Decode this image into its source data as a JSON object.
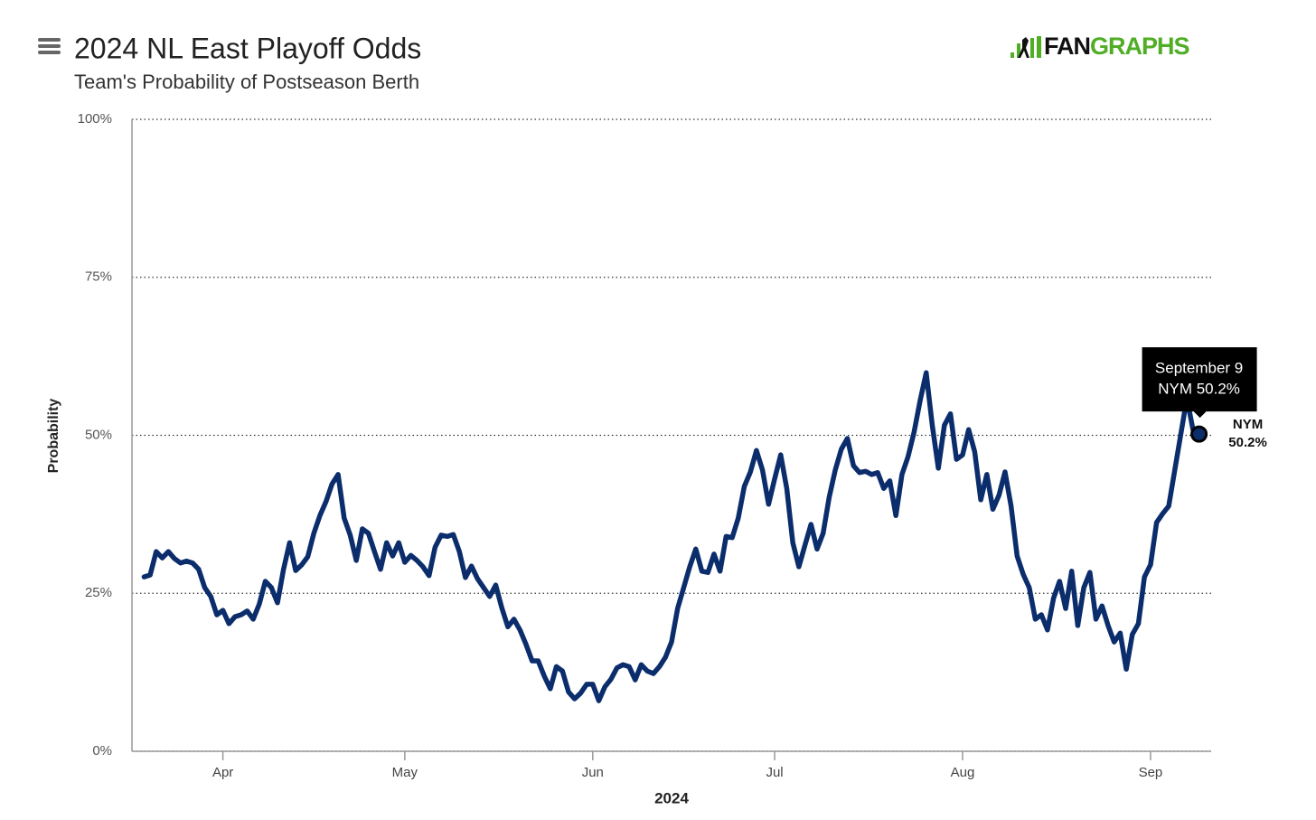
{
  "chart_data": {
    "type": "line",
    "title": "2024 NL East Playoff Odds",
    "subtitle": "Team's Probability of Postseason Berth",
    "logo": {
      "dark": "FAN",
      "green": "GRAPHS"
    },
    "xlabel": "2024",
    "ylabel": "Probability",
    "x": [
      "2024-03-19",
      "2024-03-20",
      "2024-03-21",
      "2024-03-22",
      "2024-03-23",
      "2024-03-24",
      "2024-03-25",
      "2024-03-26",
      "2024-03-27",
      "2024-03-28",
      "2024-03-29",
      "2024-03-30",
      "2024-03-31",
      "2024-04-01",
      "2024-04-02",
      "2024-04-03",
      "2024-04-04",
      "2024-04-05",
      "2024-04-06",
      "2024-04-07",
      "2024-04-08",
      "2024-04-09",
      "2024-04-10",
      "2024-04-11",
      "2024-04-12",
      "2024-04-13",
      "2024-04-14",
      "2024-04-15",
      "2024-04-16",
      "2024-04-17",
      "2024-04-18",
      "2024-04-19",
      "2024-04-20",
      "2024-04-21",
      "2024-04-22",
      "2024-04-23",
      "2024-04-24",
      "2024-04-25",
      "2024-04-26",
      "2024-04-27",
      "2024-04-28",
      "2024-04-29",
      "2024-04-30",
      "2024-05-01",
      "2024-05-02",
      "2024-05-03",
      "2024-05-04",
      "2024-05-05",
      "2024-05-06",
      "2024-05-07",
      "2024-05-08",
      "2024-05-09",
      "2024-05-10",
      "2024-05-11",
      "2024-05-12",
      "2024-05-13",
      "2024-05-14",
      "2024-05-15",
      "2024-05-16",
      "2024-05-17",
      "2024-05-18",
      "2024-05-19",
      "2024-05-20",
      "2024-05-21",
      "2024-05-22",
      "2024-05-23",
      "2024-05-24",
      "2024-05-25",
      "2024-05-26",
      "2024-05-27",
      "2024-05-28",
      "2024-05-29",
      "2024-05-30",
      "2024-05-31",
      "2024-06-01",
      "2024-06-02",
      "2024-06-03",
      "2024-06-04",
      "2024-06-05",
      "2024-06-06",
      "2024-06-07",
      "2024-06-08",
      "2024-06-09",
      "2024-06-10",
      "2024-06-11",
      "2024-06-12",
      "2024-06-13",
      "2024-06-14",
      "2024-06-15",
      "2024-06-16",
      "2024-06-17",
      "2024-06-18",
      "2024-06-19",
      "2024-06-20",
      "2024-06-21",
      "2024-06-22",
      "2024-06-23",
      "2024-06-24",
      "2024-06-25",
      "2024-06-26",
      "2024-06-27",
      "2024-06-28",
      "2024-06-29",
      "2024-06-30",
      "2024-07-01",
      "2024-07-02",
      "2024-07-03",
      "2024-07-04",
      "2024-07-05",
      "2024-07-06",
      "2024-07-07",
      "2024-07-08",
      "2024-07-09",
      "2024-07-10",
      "2024-07-11",
      "2024-07-12",
      "2024-07-13",
      "2024-07-14",
      "2024-07-15",
      "2024-07-16",
      "2024-07-17",
      "2024-07-18",
      "2024-07-19",
      "2024-07-20",
      "2024-07-21",
      "2024-07-22",
      "2024-07-23",
      "2024-07-24",
      "2024-07-25",
      "2024-07-26",
      "2024-07-27",
      "2024-07-28",
      "2024-07-29",
      "2024-07-30",
      "2024-07-31",
      "2024-08-01",
      "2024-08-02",
      "2024-08-03",
      "2024-08-04",
      "2024-08-05",
      "2024-08-06",
      "2024-08-07",
      "2024-08-08",
      "2024-08-09",
      "2024-08-10",
      "2024-08-11",
      "2024-08-12",
      "2024-08-13",
      "2024-08-14",
      "2024-08-15",
      "2024-08-16",
      "2024-08-17",
      "2024-08-18",
      "2024-08-19",
      "2024-08-20",
      "2024-08-21",
      "2024-08-22",
      "2024-08-23",
      "2024-08-24",
      "2024-08-25",
      "2024-08-26",
      "2024-08-27",
      "2024-08-28",
      "2024-08-29",
      "2024-08-30",
      "2024-08-31",
      "2024-09-01",
      "2024-09-02",
      "2024-09-03",
      "2024-09-04",
      "2024-09-05",
      "2024-09-06",
      "2024-09-07",
      "2024-09-08",
      "2024-09-09"
    ],
    "series": [
      {
        "name": "NYM",
        "color": "#0b2d6c",
        "values": [
          27.6,
          27.9,
          31.6,
          30.6,
          31.6,
          30.5,
          29.8,
          30.1,
          29.8,
          28.8,
          25.9,
          24.5,
          21.6,
          22.3,
          20.2,
          21.3,
          21.6,
          22.2,
          20.9,
          23.3,
          26.9,
          25.9,
          23.5,
          28.8,
          33.0,
          28.6,
          29.5,
          30.8,
          34.5,
          37.3,
          39.5,
          42.3,
          43.8,
          36.9,
          34.2,
          30.2,
          35.2,
          34.5,
          31.6,
          28.8,
          33.0,
          30.9,
          33.0,
          29.9,
          31.0,
          30.2,
          29.2,
          27.8,
          32.3,
          34.2,
          34.0,
          34.3,
          31.6,
          27.5,
          29.3,
          27.3,
          25.9,
          24.5,
          26.3,
          22.7,
          19.7,
          20.9,
          19.2,
          16.9,
          14.3,
          14.3,
          11.9,
          9.9,
          13.4,
          12.7,
          9.4,
          8.3,
          9.2,
          10.6,
          10.6,
          8.0,
          10.2,
          11.4,
          13.2,
          13.7,
          13.4,
          11.3,
          13.7,
          12.7,
          12.3,
          13.4,
          14.9,
          17.3,
          22.6,
          25.9,
          29.2,
          32.0,
          28.5,
          28.3,
          31.2,
          28.5,
          34.0,
          33.8,
          36.9,
          41.9,
          44.2,
          47.6,
          44.5,
          39.1,
          43.1,
          46.9,
          41.6,
          33.0,
          29.2,
          32.6,
          35.9,
          32.0,
          34.5,
          40.2,
          44.5,
          47.8,
          49.5,
          45.2,
          44.1,
          44.3,
          43.8,
          44.1,
          41.6,
          42.8,
          37.3,
          43.8,
          46.6,
          50.5,
          55.5,
          59.9,
          51.6,
          44.8,
          51.6,
          53.4,
          46.2,
          46.9,
          50.9,
          47.4,
          39.8,
          43.8,
          38.3,
          40.5,
          44.2,
          38.8,
          30.9,
          28.0,
          25.9,
          20.9,
          21.6,
          19.2,
          24.2,
          26.9,
          22.6,
          28.5,
          19.9,
          25.9,
          28.3,
          20.9,
          23.0,
          19.9,
          17.3,
          18.7,
          13.0,
          18.5,
          20.2,
          27.6,
          29.5,
          36.2,
          37.6,
          38.8,
          44.5,
          50.2,
          55.9,
          50.9,
          50.2
        ],
        "value_labels": [
          null,
          null,
          null,
          null,
          null,
          null,
          null,
          null,
          null,
          null,
          null,
          null,
          null,
          null,
          null,
          null,
          null,
          null,
          null,
          null,
          null,
          null,
          null,
          null,
          null,
          null,
          null,
          null,
          null,
          null,
          null,
          null,
          null,
          null,
          null,
          null,
          null,
          null,
          null,
          null,
          null,
          null,
          null,
          null,
          null,
          null,
          null,
          null,
          null,
          null,
          null,
          null,
          null,
          null,
          null,
          null,
          null,
          null,
          null,
          null,
          null,
          null,
          null,
          null,
          null,
          null,
          null,
          null,
          null,
          null,
          null,
          null,
          null,
          null,
          null,
          null,
          null,
          null,
          null,
          null,
          null,
          null,
          null,
          null,
          null,
          null,
          null,
          null,
          null,
          null,
          null,
          null,
          null,
          null,
          null,
          null,
          null,
          null,
          null,
          null,
          null,
          null,
          null,
          null,
          null,
          null,
          null,
          null,
          null,
          null,
          null,
          null,
          null,
          null,
          null,
          null,
          null,
          null,
          null,
          null,
          null,
          null,
          null,
          null,
          null,
          null,
          null,
          null,
          null,
          null,
          null,
          null,
          null,
          null,
          null,
          null,
          null,
          null,
          null,
          null,
          null,
          null,
          null,
          null,
          null,
          null,
          null,
          null,
          null,
          null,
          null,
          null,
          null,
          null,
          null,
          null,
          null,
          null,
          null,
          null,
          null,
          null,
          null,
          null,
          null,
          null,
          null,
          null,
          null,
          null,
          null,
          null,
          null,
          null,
          "50.2%"
        ]
      }
    ],
    "annotations": [
      {
        "text": "September 9"
      },
      {
        "text": "NYM 50.2%"
      }
    ],
    "xlim": [
      "2024-03-17",
      "2024-09-11"
    ],
    "xticks": [
      {
        "value": "2024-04-01",
        "label": "Apr"
      },
      {
        "value": "2024-05-01",
        "label": "May"
      },
      {
        "value": "2024-06-01",
        "label": "Jun"
      },
      {
        "value": "2024-07-01",
        "label": "Jul"
      },
      {
        "value": "2024-08-01",
        "label": "Aug"
      },
      {
        "value": "2024-09-01",
        "label": "Sep"
      }
    ],
    "ylim": [
      0,
      100
    ],
    "yticks": [
      {
        "value": 0,
        "label": "0%"
      },
      {
        "value": 25,
        "label": "25%"
      },
      {
        "value": 50,
        "label": "50%"
      },
      {
        "value": 75,
        "label": "75%"
      },
      {
        "value": 100,
        "label": "100%"
      }
    ],
    "grid": true
  }
}
